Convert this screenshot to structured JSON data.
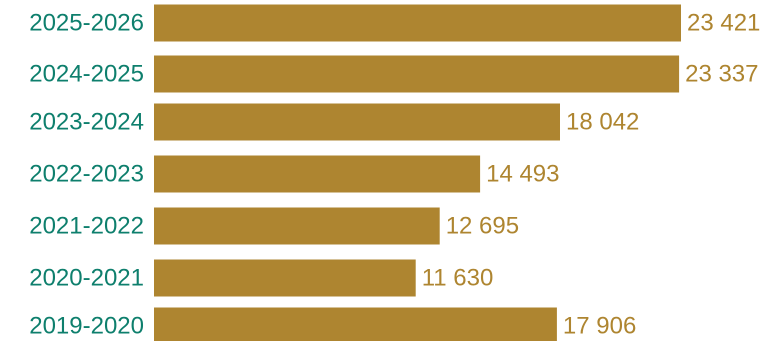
{
  "chart_data": {
    "type": "bar",
    "orientation": "horizontal",
    "categories": [
      "2025-2026",
      "2024-2025",
      "2023-2024",
      "2022-2023",
      "2021-2022",
      "2020-2021",
      "2019-2020"
    ],
    "values": [
      23421,
      23337,
      18042,
      14493,
      12695,
      11630,
      17906
    ],
    "value_labels": [
      "23 421",
      "23 337",
      "18 042",
      "14 493",
      "12 695",
      "11 630",
      "17 906"
    ],
    "title": "",
    "xlabel": "",
    "ylabel": "",
    "grid": false,
    "legend": "none"
  },
  "colors": {
    "bar": "#ae8530",
    "category_text": "#0e7f6d",
    "value_text": "#ae8530"
  }
}
